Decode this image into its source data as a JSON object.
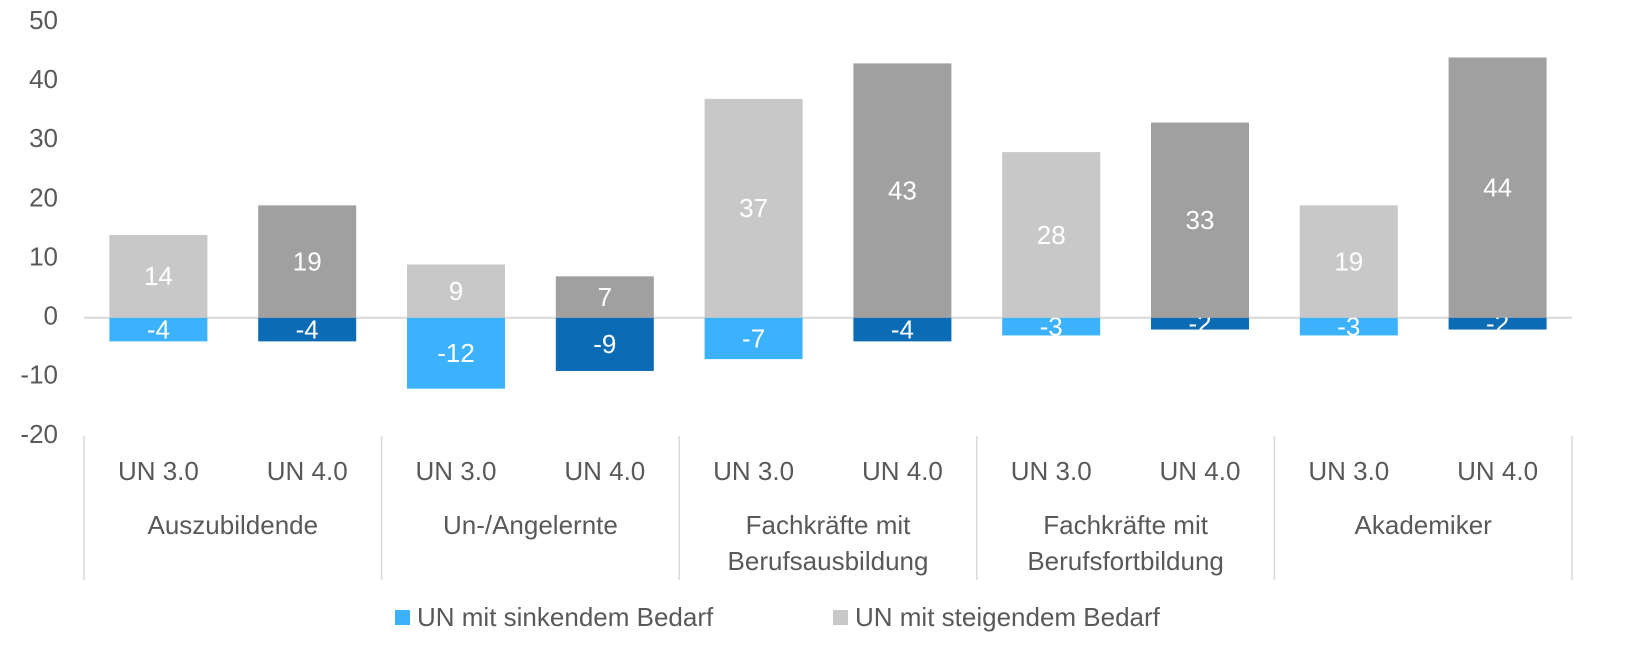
{
  "chart_data": {
    "type": "bar",
    "stacked": false,
    "categories": [
      "UN 3.0",
      "UN 4.0",
      "UN 3.0",
      "UN 4.0",
      "UN 3.0",
      "UN 4.0",
      "UN 3.0",
      "UN 4.0",
      "UN 3.0",
      "UN 4.0"
    ],
    "groups": [
      [
        "Auszubildende"
      ],
      [
        "Un-/Angelernte"
      ],
      [
        "Fachkräfte mit",
        "Berufsausbildung"
      ],
      [
        "Fachkräfte mit",
        "Berufsfortbildung"
      ],
      [
        "Akademiker"
      ]
    ],
    "series": [
      {
        "name": "UN mit sinkendem Bedarf",
        "color": "#3cb2fc",
        "point_colors": [
          "#3cb2fc",
          "#0b6bb5",
          "#3cb2fc",
          "#0b6bb5",
          "#3cb2fc",
          "#0b6bb5",
          "#3cb2fc",
          "#0b6bb5",
          "#3cb2fc",
          "#0b6bb5"
        ],
        "values": [
          -4,
          -4,
          -12,
          -9,
          -7,
          -4,
          -3,
          -2,
          -3,
          -2
        ]
      },
      {
        "name": "UN mit steigendem Bedarf",
        "color": "#c8c8c8",
        "point_colors": [
          "#c8c8c8",
          "#a0a0a0",
          "#c8c8c8",
          "#a0a0a0",
          "#c8c8c8",
          "#a0a0a0",
          "#c8c8c8",
          "#a0a0a0",
          "#c8c8c8",
          "#a0a0a0"
        ],
        "values": [
          14,
          19,
          9,
          7,
          37,
          43,
          28,
          33,
          19,
          44
        ]
      }
    ],
    "ylim": [
      -20,
      50
    ],
    "yticks": [
      -20,
      -10,
      0,
      10,
      20,
      30,
      40,
      50
    ],
    "grid": false,
    "legend": "bottom"
  }
}
